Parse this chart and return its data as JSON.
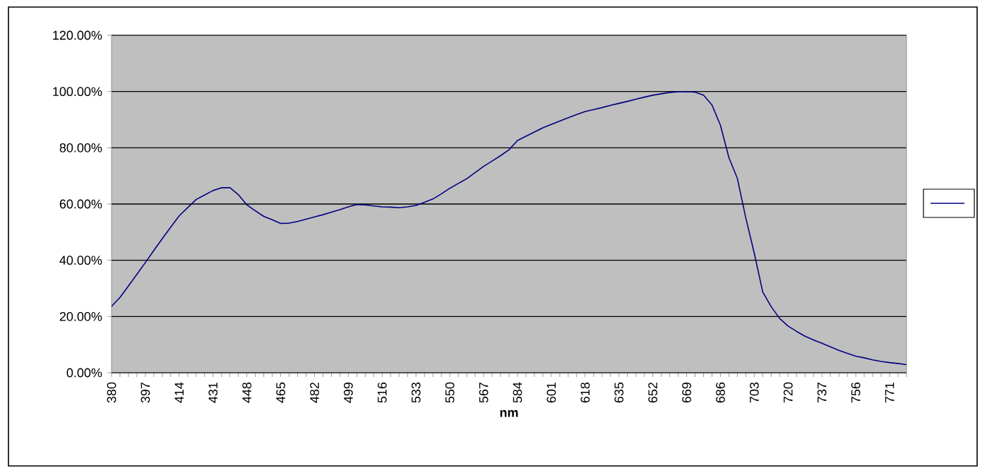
{
  "chart_data": {
    "type": "line",
    "xlabel": "nm",
    "categories": [
      "380",
      null,
      null,
      null,
      "397",
      null,
      null,
      null,
      "414",
      null,
      null,
      null,
      "431",
      null,
      null,
      null,
      "448",
      null,
      null,
      null,
      "465",
      null,
      null,
      null,
      "482",
      null,
      null,
      null,
      "499",
      null,
      null,
      null,
      "516",
      null,
      null,
      null,
      "533",
      null,
      null,
      null,
      "550",
      null,
      null,
      null,
      "567",
      null,
      null,
      null,
      "584",
      null,
      null,
      null,
      "601",
      null,
      null,
      null,
      "618",
      null,
      null,
      null,
      "635",
      null,
      null,
      null,
      "652",
      null,
      null,
      null,
      "669",
      null,
      null,
      null,
      "686",
      null,
      null,
      null,
      "703",
      null,
      null,
      null,
      "720",
      null,
      null,
      null,
      "737",
      null,
      null,
      null,
      "756",
      null,
      null,
      null,
      "771",
      null,
      null
    ],
    "series": [
      {
        "color": "#000080",
        "values": [
          23.6,
          26.8,
          30.9,
          35.0,
          39.2,
          43.5,
          47.7,
          51.8,
          55.8,
          58.7,
          61.6,
          63.2,
          64.8,
          65.8,
          65.8,
          63.3,
          59.7,
          57.6,
          55.6,
          54.4,
          53.1,
          53.2,
          53.8,
          54.6,
          55.4,
          56.2,
          57.1,
          58.0,
          59.0,
          59.8,
          59.7,
          59.3,
          59.0,
          58.9,
          58.7,
          59.0,
          59.5,
          60.6,
          61.8,
          63.6,
          65.6,
          67.3,
          69.0,
          71.2,
          73.4,
          75.3,
          77.2,
          79.3,
          82.6,
          84.1,
          85.6,
          87.1,
          88.3,
          89.5,
          90.7,
          91.8,
          92.9,
          93.6,
          94.3,
          95.1,
          95.8,
          96.5,
          97.3,
          98.0,
          98.7,
          99.2,
          99.7,
          99.9,
          100,
          99.8,
          98.7,
          95.2,
          88.0,
          76.5,
          69.1,
          55.0,
          42.5,
          28.7,
          23.5,
          19.3,
          16.6,
          14.7,
          13.0,
          11.7,
          10.5,
          9.2,
          8.0,
          6.9,
          5.9,
          5.3,
          4.6,
          4.0,
          3.6,
          3.3,
          2.9
        ]
      }
    ],
    "ylim": [
      0,
      120
    ],
    "yticks": [
      {
        "value": 0,
        "label": "0.00%"
      },
      {
        "value": 20,
        "label": "20.00%"
      },
      {
        "value": 40,
        "label": "40.00%"
      },
      {
        "value": 60,
        "label": "60.00%"
      },
      {
        "value": 80,
        "label": "80.00%"
      },
      {
        "value": 100,
        "label": "100.00%"
      },
      {
        "value": 120,
        "label": "120.00%"
      }
    ],
    "grid": "y",
    "marker": "none",
    "line_style": "solid"
  }
}
